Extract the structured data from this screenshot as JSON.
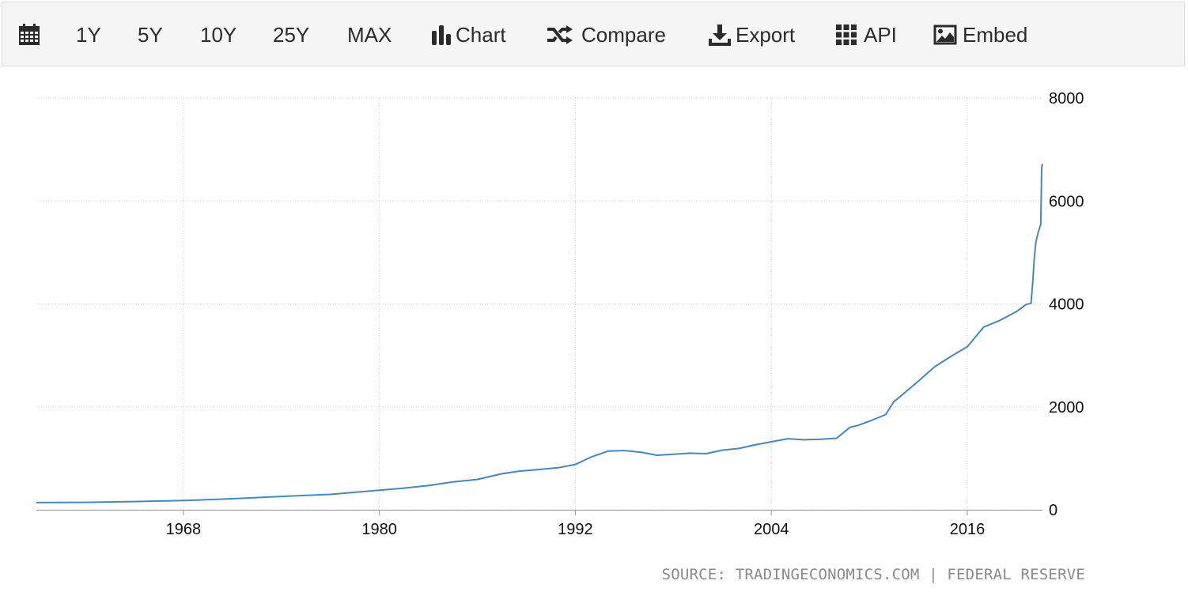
{
  "toolbar": {
    "calendar_icon": "calendar-icon",
    "ranges": [
      "1Y",
      "5Y",
      "10Y",
      "25Y",
      "MAX"
    ],
    "chart_label": "Chart",
    "compare_label": "Compare",
    "export_label": "Export",
    "api_label": "API",
    "embed_label": "Embed"
  },
  "footer": {
    "source": "SOURCE: TRADINGECONOMICS.COM | FEDERAL RESERVE"
  },
  "colors": {
    "line": "#4a86b8",
    "grid": "#d0d0d0"
  },
  "chart_data": {
    "type": "line",
    "title": "",
    "xlabel": "",
    "ylabel": "",
    "xlim": [
      1959.0,
      2020.6
    ],
    "ylim": [
      0,
      8000
    ],
    "y_axis_position": "right",
    "grid": true,
    "x_ticks": [
      "1968",
      "1980",
      "1992",
      "2004",
      "2016"
    ],
    "y_ticks": [
      "0",
      "2000",
      "4000",
      "6000",
      "8000"
    ],
    "series": [
      {
        "x": [
          1959.0,
          1962.0,
          1965.0,
          1968.0,
          1971.0,
          1974.0,
          1977.0,
          1980.0,
          1981.5,
          1983.0,
          1984.5,
          1986.0,
          1987.5,
          1988.5,
          1990.0,
          1991.0,
          1992.0,
          1993.0,
          1994.0,
          1995.0,
          1996.0,
          1997.0,
          1998.0,
          1999.0,
          2000.0,
          2001.0,
          2002.0,
          2003.0,
          2004.0,
          2005.0,
          2006.0,
          2007.0,
          2008.0,
          2008.8,
          2009.3,
          2010.0,
          2011.0,
          2011.5,
          2012.0,
          2013.0,
          2014.0,
          2015.0,
          2016.0,
          2017.0,
          2018.0,
          2019.0,
          2019.6,
          2019.9,
          2020.0,
          2020.1,
          2020.2,
          2020.35,
          2020.5,
          2020.55,
          2020.6
        ],
        "y": [
          140,
          145,
          160,
          180,
          215,
          260,
          300,
          380,
          420,
          470,
          540,
          590,
          700,
          750,
          790,
          820,
          880,
          1030,
          1140,
          1150,
          1120,
          1060,
          1080,
          1100,
          1090,
          1160,
          1190,
          1260,
          1320,
          1380,
          1360,
          1370,
          1390,
          1600,
          1640,
          1720,
          1850,
          2100,
          2230,
          2500,
          2780,
          2980,
          3170,
          3550,
          3680,
          3850,
          3990,
          4010,
          4400,
          4900,
          5200,
          5400,
          5550,
          6650,
          6720
        ]
      }
    ]
  }
}
